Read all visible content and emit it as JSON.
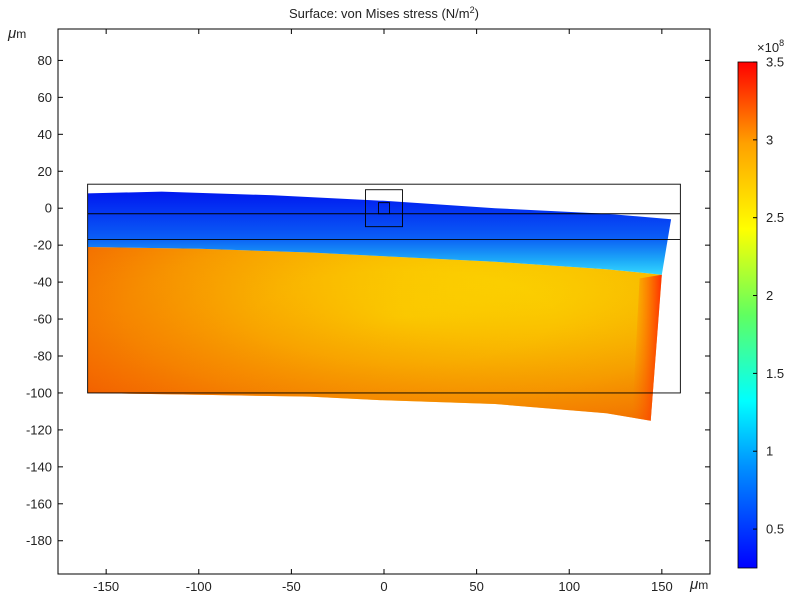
{
  "chart_data": {
    "type": "heatmap",
    "title": "Surface: von Mises stress (N/m",
    "title_sup": "2",
    "title_end": ")",
    "xunit_a": "μ",
    "xunit_b": "m",
    "yunit_a": "μ",
    "yunit_b": "m",
    "xlim": [
      -176,
      176
    ],
    "ylim": [
      -198,
      97
    ],
    "x_ticks": [
      -150,
      -100,
      -50,
      0,
      50,
      100,
      150
    ],
    "y_ticks": [
      80,
      60,
      40,
      20,
      0,
      -20,
      -40,
      -60,
      -80,
      -100,
      -120,
      -140,
      -160,
      -180
    ],
    "colorbar": {
      "multiplier_base": "×10",
      "multiplier_exp": "8",
      "range": [
        0.25,
        3.5
      ],
      "ticks": [
        "3.5",
        "3",
        "2.5",
        "2",
        "1.5",
        "1",
        "0.5"
      ],
      "tick_values": [
        3.5,
        3.0,
        2.5,
        2.0,
        1.5,
        1.0,
        0.5
      ],
      "colormap": [
        "#0000ff",
        "#00a0ff",
        "#00ffff",
        "#80ff40",
        "#ffff00",
        "#ffa000",
        "#ff0000"
      ]
    },
    "undeformed_outline": [
      {
        "name": "domain",
        "x": [
          -160,
          160
        ],
        "y": [
          -100,
          13
        ]
      },
      {
        "name": "interface-line-upper",
        "x": [
          -160,
          160
        ],
        "y": -3
      },
      {
        "name": "interface-line-lower",
        "x": [
          -160,
          160
        ],
        "y": -17
      }
    ],
    "small_boxes": [
      {
        "x": [
          -10,
          10
        ],
        "y": [
          -10,
          10
        ]
      },
      {
        "x": [
          -3,
          3
        ],
        "y": [
          -3,
          3
        ]
      }
    ],
    "deformed_top_layer": {
      "top_edge": [
        [
          -160,
          8
        ],
        [
          -120,
          9
        ],
        [
          -60,
          7
        ],
        [
          0,
          4
        ],
        [
          60,
          0
        ],
        [
          120,
          -3
        ],
        [
          155,
          -6
        ]
      ],
      "interface": [
        [
          -160,
          -21
        ],
        [
          -100,
          -22
        ],
        [
          -40,
          -24
        ],
        [
          0,
          -26
        ],
        [
          60,
          -29
        ],
        [
          120,
          -33
        ],
        [
          150,
          -36
        ]
      ],
      "stress_value": 0.45
    },
    "deformed_bottom_layer": {
      "top_edge": [
        [
          -160,
          -21
        ],
        [
          -100,
          -22
        ],
        [
          -40,
          -24
        ],
        [
          0,
          -26
        ],
        [
          60,
          -29
        ],
        [
          120,
          -33
        ],
        [
          150,
          -36
        ]
      ],
      "bottom_edge": [
        [
          -160,
          -100
        ],
        [
          -100,
          -101
        ],
        [
          -40,
          -102
        ],
        [
          0,
          -104
        ],
        [
          60,
          -106
        ],
        [
          120,
          -111
        ],
        [
          144,
          -115
        ]
      ],
      "stress_value": 2.6
    }
  }
}
